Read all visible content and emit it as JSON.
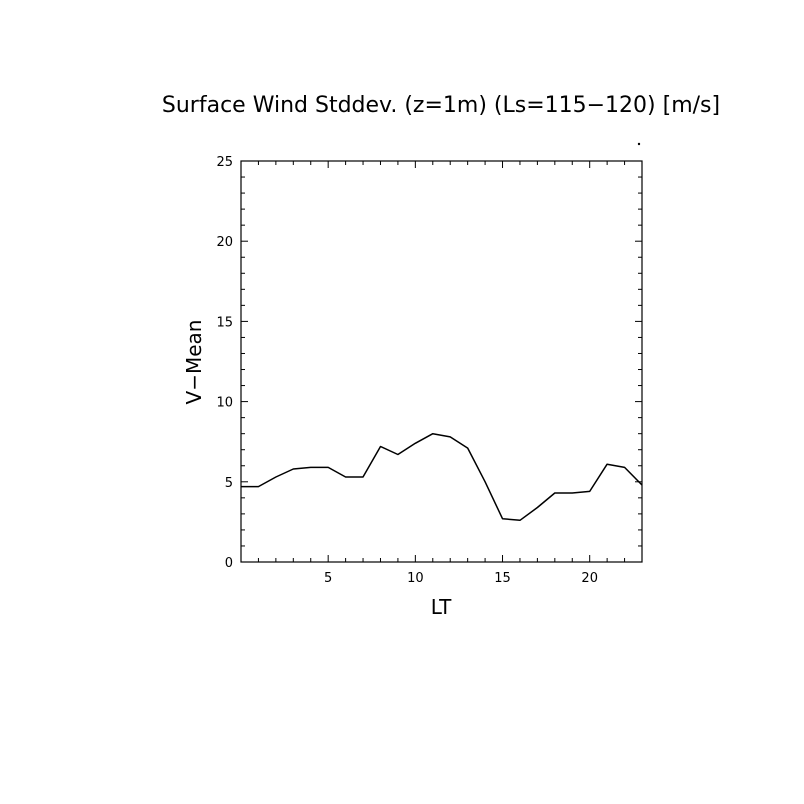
{
  "chart_data": {
    "type": "line",
    "title": "Surface Wind Stddev. (z=1m) (Ls=115−120) [m/s]",
    "xlabel": "LT",
    "ylabel": "V−Mean",
    "xlim": [
      0,
      23
    ],
    "ylim": [
      0,
      25
    ],
    "xticks": [
      5,
      10,
      15,
      20
    ],
    "yticks": [
      0,
      5,
      10,
      15,
      20,
      25
    ],
    "grid": false,
    "series": [
      {
        "x": [
          0,
          1,
          2,
          3,
          4,
          5,
          6,
          7,
          8,
          9,
          10,
          11,
          12,
          13,
          14,
          15,
          16,
          17,
          18,
          19,
          20,
          21,
          22,
          23
        ],
        "y": [
          4.7,
          4.7,
          5.3,
          5.8,
          5.9,
          5.9,
          5.3,
          5.3,
          7.2,
          6.7,
          7.4,
          8.0,
          7.8,
          7.1,
          5.0,
          2.7,
          2.6,
          3.4,
          4.3,
          4.3,
          4.4,
          6.1,
          5.9,
          4.8
        ]
      }
    ]
  }
}
